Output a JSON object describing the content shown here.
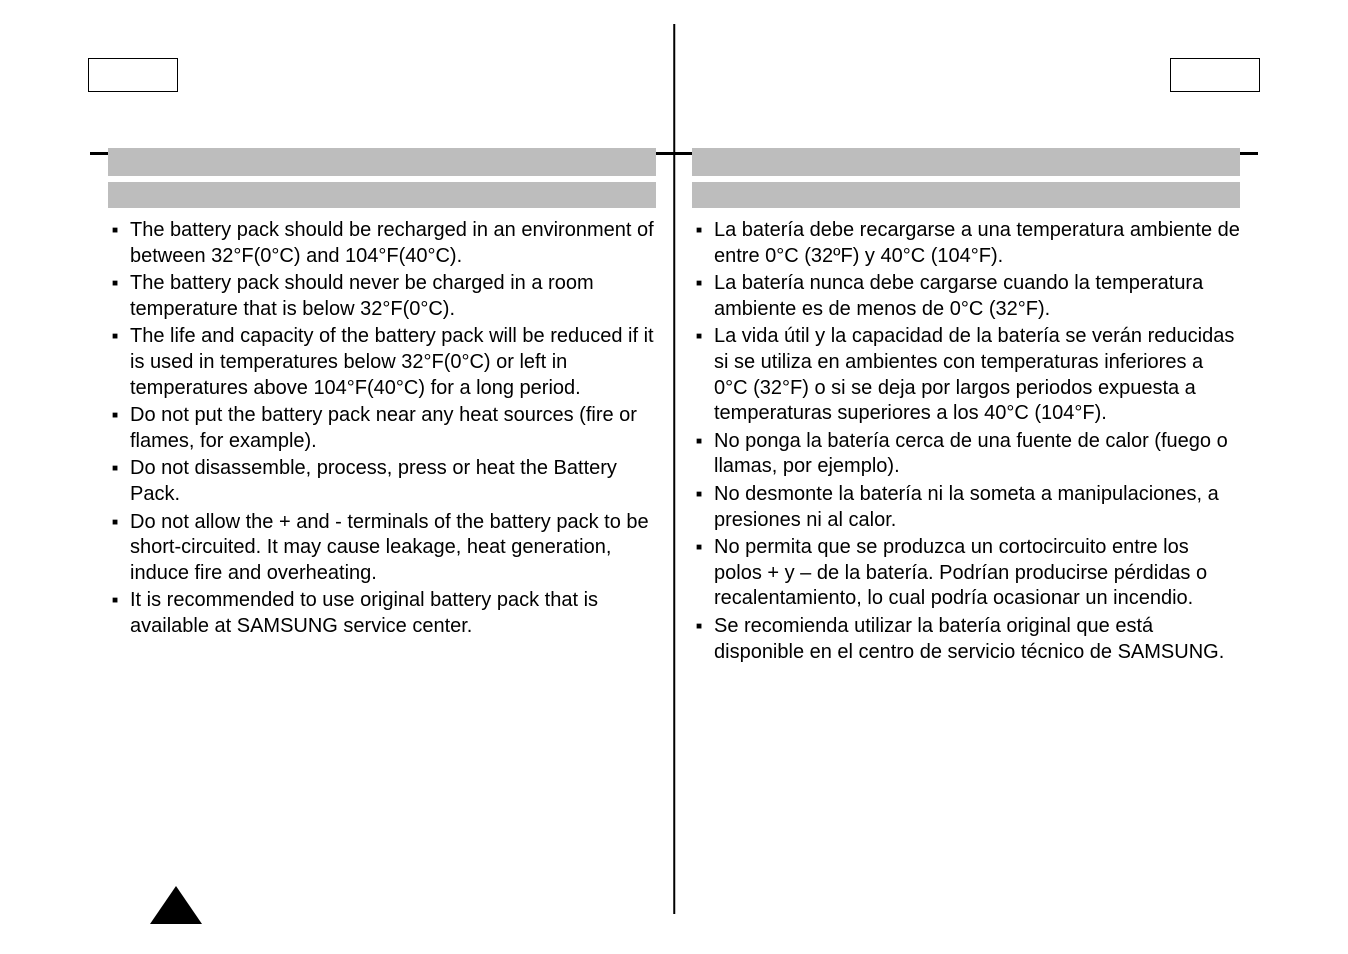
{
  "left": {
    "bullets": [
      "The battery pack should be recharged in an environment of between 32°F(0°C) and 104°F(40°C).",
      "The battery pack should never be charged in a room temperature that is below 32°F(0°C).",
      "The life and capacity of the battery pack will be reduced if it is used in temperatures below 32°F(0°C) or left in temperatures above 104°F(40°C) for a long period.",
      "Do not put the battery pack near any heat sources (fire or flames, for example).",
      "Do not disassemble, process, press or heat the Battery Pack.",
      "Do not allow the + and - terminals of the battery pack to be short-circuited. It may cause leakage, heat generation, induce fire and overheating.",
      "It is recommended to use original battery pack that is available at SAMSUNG service center."
    ]
  },
  "right": {
    "bullets": [
      "La batería debe recargarse a una temperatura ambiente de entre 0°C (32ºF) y 40°C (104°F).",
      "La batería nunca debe cargarse cuando la temperatura ambiente es de menos de 0°C (32°F).",
      "La vida útil y la capacidad de la batería se verán reducidas si se utiliza en ambientes con temperaturas inferiores a 0°C (32°F) o si se deja por largos periodos expuesta a temperaturas superiores a los 40°C (104°F).",
      "No ponga la batería cerca de una fuente de calor (fuego o llamas, por ejemplo).",
      "No desmonte la batería ni la someta a manipulaciones, a presiones ni al calor.",
      "No permita que se produzca un cortocircuito entre los polos + y – de la batería. Podrían producirse pérdidas o recalentamiento, lo cual podría ocasionar un incendio.",
      "Se recomienda utilizar la batería original que está disponible en el centro de servicio técnico de SAMSUNG."
    ]
  }
}
